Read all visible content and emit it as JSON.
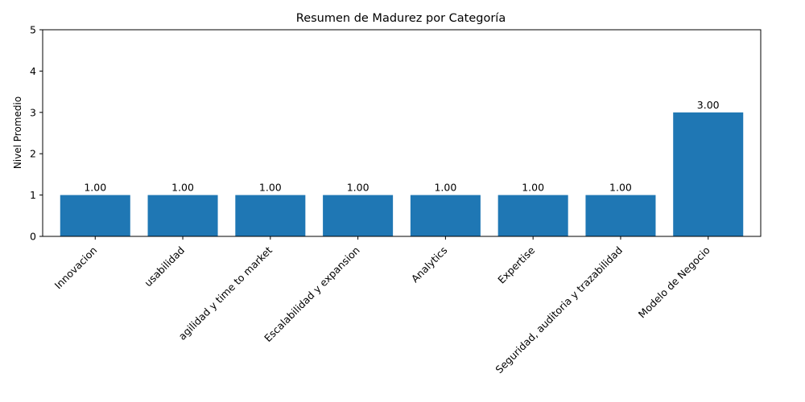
{
  "chart_data": {
    "type": "bar",
    "title": "Resumen de Madurez por Categoría",
    "xlabel": "",
    "ylabel": "Nivel Promedio",
    "categories": [
      "Innovacion",
      "usabilidad",
      "agilidad y time to market",
      "Escalabilidad y expansion",
      "Analytics",
      "Expertise",
      "Seguridad, auditoria y trazabilidad",
      "Modelo de Negocio"
    ],
    "values": [
      1.0,
      1.0,
      1.0,
      1.0,
      1.0,
      1.0,
      1.0,
      3.0
    ],
    "data_labels": [
      "1.00",
      "1.00",
      "1.00",
      "1.00",
      "1.00",
      "1.00",
      "1.00",
      "3.00"
    ],
    "yticks": [
      0,
      1,
      2,
      3,
      4,
      5
    ],
    "ylim": [
      0,
      5
    ],
    "bar_color": "#1f77b4",
    "grid": false,
    "legend": "none"
  }
}
